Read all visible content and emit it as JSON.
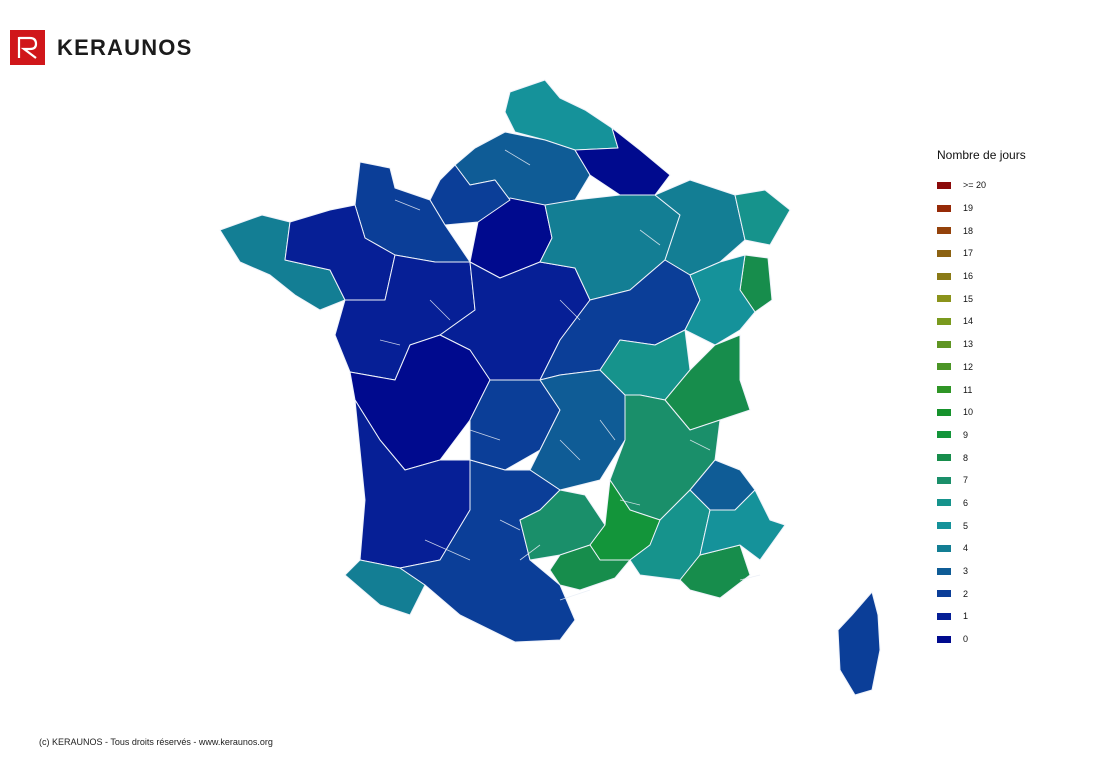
{
  "brand": {
    "name": "KERAUNOS",
    "color": "#d0161a"
  },
  "legend": {
    "title": "Nombre de jours",
    "items": [
      {
        "label": ">= 20",
        "color": "#8b0a0a"
      },
      {
        "label": "19",
        "color": "#962a07"
      },
      {
        "label": "18",
        "color": "#94420b"
      },
      {
        "label": "17",
        "color": "#8c6212"
      },
      {
        "label": "16",
        "color": "#8a7a16"
      },
      {
        "label": "15",
        "color": "#8b931b"
      },
      {
        "label": "14",
        "color": "#7a9a1e"
      },
      {
        "label": "13",
        "color": "#5f9523"
      },
      {
        "label": "12",
        "color": "#4b9526"
      },
      {
        "label": "11",
        "color": "#2f9526"
      },
      {
        "label": "10",
        "color": "#16922c"
      },
      {
        "label": "9",
        "color": "#13953a"
      },
      {
        "label": "8",
        "color": "#178d4c"
      },
      {
        "label": "7",
        "color": "#1a8f6a"
      },
      {
        "label": "6",
        "color": "#16938c"
      },
      {
        "label": "5",
        "color": "#15929a"
      },
      {
        "label": "4",
        "color": "#137e94"
      },
      {
        "label": "3",
        "color": "#0f5c96"
      },
      {
        "label": "2",
        "color": "#0b3e98"
      },
      {
        "label": "1",
        "color": "#061f96"
      },
      {
        "label": "0",
        "color": "#000a8e"
      }
    ]
  },
  "map_data": {
    "type": "choropleth",
    "metric_label": "Nombre de jours",
    "regions": [
      {
        "name": "Nord-Pas-de-Calais",
        "value": 5
      },
      {
        "name": "Picardie",
        "value": 3
      },
      {
        "name": "Ardennes",
        "value": 0
      },
      {
        "name": "Île-de-France",
        "value": 0
      },
      {
        "name": "Haute-Normandie",
        "value": 2
      },
      {
        "name": "Basse-Normandie",
        "value": 2
      },
      {
        "name": "Bretagne ouest",
        "value": 4
      },
      {
        "name": "Bretagne nord",
        "value": 1
      },
      {
        "name": "Pays de la Loire",
        "value": 1
      },
      {
        "name": "Centre",
        "value": 1
      },
      {
        "name": "Champagne",
        "value": 4
      },
      {
        "name": "Lorraine",
        "value": 4
      },
      {
        "name": "Alsace",
        "value": 6
      },
      {
        "name": "Haut-Rhin",
        "value": 8
      },
      {
        "name": "Bourgogne",
        "value": 2
      },
      {
        "name": "Franche-Comté",
        "value": 5
      },
      {
        "name": "Poitou-Charentes",
        "value": 0
      },
      {
        "name": "Limousin",
        "value": 2
      },
      {
        "name": "Auvergne",
        "value": 3
      },
      {
        "name": "Rhône-Alpes ouest",
        "value": 6
      },
      {
        "name": "Ain-Savoie",
        "value": 8
      },
      {
        "name": "Isère",
        "value": 7
      },
      {
        "name": "Hautes-Alpes",
        "value": 3
      },
      {
        "name": "Aquitaine",
        "value": 1
      },
      {
        "name": "Pyrénées-Atlantiques",
        "value": 4
      },
      {
        "name": "Midi-Pyrénées",
        "value": 2
      },
      {
        "name": "Aveyron",
        "value": 7
      },
      {
        "name": "Lozère-Gard",
        "value": 9
      },
      {
        "name": "Hérault",
        "value": 8
      },
      {
        "name": "Vaucluse",
        "value": 6
      },
      {
        "name": "Var",
        "value": 8
      },
      {
        "name": "Alpes-Maritimes",
        "value": 5
      },
      {
        "name": "Corse",
        "value": 2
      }
    ]
  },
  "copyright": "(c) KERAUNOS - Tous droits réservés - www.keraunos.org"
}
